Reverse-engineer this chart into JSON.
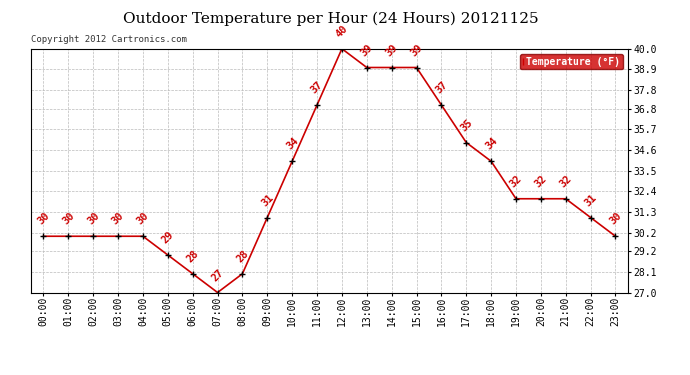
{
  "title": "Outdoor Temperature per Hour (24 Hours) 20121125",
  "copyright_text": "Copyright 2012 Cartronics.com",
  "legend_label": "Temperature (°F)",
  "hours": [
    "00:00",
    "01:00",
    "02:00",
    "03:00",
    "04:00",
    "05:00",
    "06:00",
    "07:00",
    "08:00",
    "09:00",
    "10:00",
    "11:00",
    "12:00",
    "13:00",
    "14:00",
    "15:00",
    "16:00",
    "17:00",
    "18:00",
    "19:00",
    "20:00",
    "21:00",
    "22:00",
    "23:00"
  ],
  "temps": [
    30,
    30,
    30,
    30,
    30,
    29,
    28,
    27,
    28,
    31,
    34,
    37,
    40,
    39,
    39,
    39,
    37,
    35,
    34,
    32,
    32,
    32,
    31,
    30
  ],
  "ylim": [
    27.0,
    40.0
  ],
  "yticks": [
    27.0,
    28.1,
    29.2,
    30.2,
    31.3,
    32.4,
    33.5,
    34.6,
    35.7,
    36.8,
    37.8,
    38.9,
    40.0
  ],
  "line_color": "#cc0000",
  "marker_color": "#000000",
  "label_color": "#cc0000",
  "bg_color": "#ffffff",
  "grid_color": "#bbbbbb",
  "title_fontsize": 11,
  "label_fontsize": 7.5,
  "tick_fontsize": 7,
  "legend_bg": "#cc0000",
  "legend_fg": "#ffffff",
  "fig_width": 6.9,
  "fig_height": 3.75,
  "dpi": 100
}
